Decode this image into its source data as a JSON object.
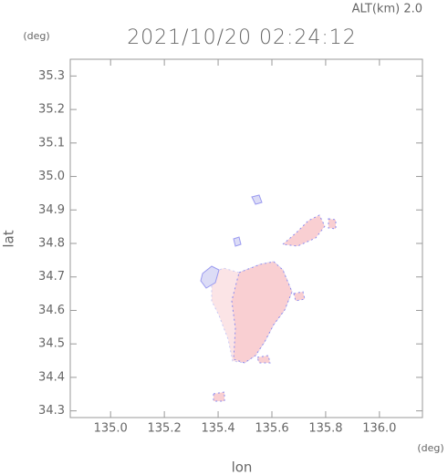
{
  "chart_data": {
    "type": "map",
    "title": "2021/10/20 02:24:12",
    "subtitle": "ALT(km) 2.0",
    "y_unit": "(deg)",
    "x_unit": "(deg)",
    "xlabel": "lon",
    "ylabel": "lat",
    "xlim": [
      134.85,
      136.16
    ],
    "ylim": [
      34.28,
      35.35
    ],
    "xticks": [
      {
        "value": 135.0,
        "label": "135.0"
      },
      135.2,
      135.4,
      135.6,
      135.8,
      {
        "value": 136.0,
        "label": "136.0"
      }
    ],
    "yticks": [
      34.3,
      34.4,
      34.5,
      34.6,
      34.7,
      34.8,
      34.9,
      {
        "value": 35.0,
        "label": "35.0"
      },
      35.1,
      35.2,
      35.3
    ]
  }
}
